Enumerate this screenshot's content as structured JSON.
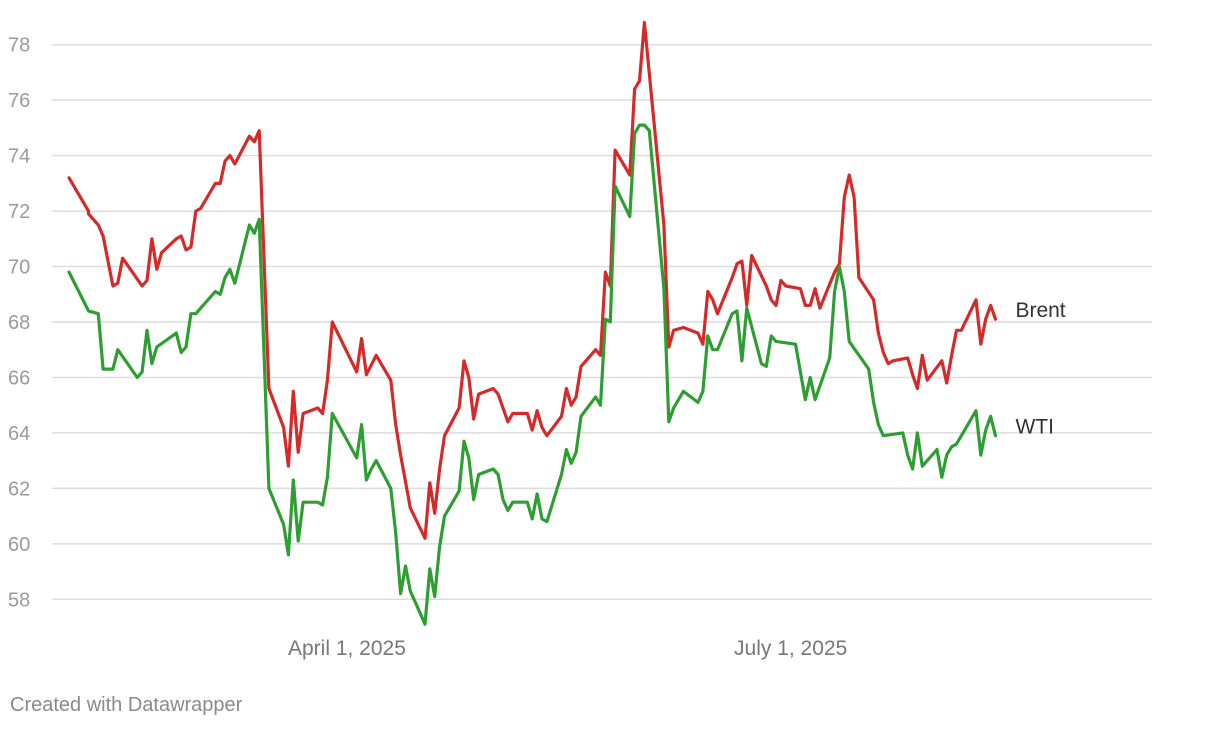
{
  "footer": {
    "credit": "Created with Datawrapper"
  },
  "colors": {
    "brent": "#d42a2a",
    "wti": "#2e9e32",
    "grid": "#dcdcdc",
    "tick_text": "#9a9a9a",
    "axis_label_text": "#777777",
    "series_label_text": "#333333"
  },
  "chart_data": {
    "type": "line",
    "title": "",
    "xlabel": "",
    "ylabel": "",
    "ylim": [
      57,
      79
    ],
    "xlim": [
      "2025-02-03",
      "2025-09-09"
    ],
    "yticks": [
      58,
      60,
      62,
      64,
      66,
      68,
      70,
      72,
      74,
      76,
      78
    ],
    "xticks": [
      {
        "date": "2025-04-01",
        "label": "April 1, 2025"
      },
      {
        "date": "2025-07-01",
        "label": "July 1, 2025"
      }
    ],
    "grid": true,
    "legend": "direct labels at line ends (right)",
    "series": [
      {
        "name": "Brent",
        "color": "#d42a2a",
        "points": [
          [
            "2025-02-03",
            73.2
          ],
          [
            "2025-02-07",
            72.0
          ],
          [
            "2025-02-07",
            71.9
          ],
          [
            "2025-02-08",
            71.7
          ],
          [
            "2025-02-09",
            71.5
          ],
          [
            "2025-02-10",
            71.1
          ],
          [
            "2025-02-12",
            69.3
          ],
          [
            "2025-02-13",
            69.4
          ],
          [
            "2025-02-14",
            70.3
          ],
          [
            "2025-02-18",
            69.3
          ],
          [
            "2025-02-19",
            69.5
          ],
          [
            "2025-02-20",
            71.0
          ],
          [
            "2025-02-21",
            69.9
          ],
          [
            "2025-02-22",
            70.5
          ],
          [
            "2025-02-25",
            71.0
          ],
          [
            "2025-02-26",
            71.1
          ],
          [
            "2025-02-27",
            70.6
          ],
          [
            "2025-02-28",
            70.7
          ],
          [
            "2025-03-01",
            72.0
          ],
          [
            "2025-03-02",
            72.1
          ],
          [
            "2025-03-05",
            73.0
          ],
          [
            "2025-03-06",
            73.0
          ],
          [
            "2025-03-07",
            73.8
          ],
          [
            "2025-03-08",
            74.0
          ],
          [
            "2025-03-09",
            73.7
          ],
          [
            "2025-03-12",
            74.7
          ],
          [
            "2025-03-13",
            74.5
          ],
          [
            "2025-03-14",
            74.9
          ],
          [
            "2025-03-16",
            65.6
          ],
          [
            "2025-03-19",
            64.2
          ],
          [
            "2025-03-20",
            62.8
          ],
          [
            "2025-03-21",
            65.5
          ],
          [
            "2025-03-22",
            63.3
          ],
          [
            "2025-03-23",
            64.7
          ],
          [
            "2025-03-26",
            64.9
          ],
          [
            "2025-03-27",
            64.7
          ],
          [
            "2025-03-28",
            65.9
          ],
          [
            "2025-03-29",
            68.0
          ],
          [
            "2025-04-03",
            66.2
          ],
          [
            "2025-04-04",
            67.4
          ],
          [
            "2025-04-05",
            66.1
          ],
          [
            "2025-04-07",
            66.8
          ],
          [
            "2025-04-10",
            65.9
          ],
          [
            "2025-04-11",
            64.3
          ],
          [
            "2025-04-12",
            63.2
          ],
          [
            "2025-04-14",
            61.3
          ],
          [
            "2025-04-17",
            60.2
          ],
          [
            "2025-04-18",
            62.2
          ],
          [
            "2025-04-19",
            61.1
          ],
          [
            "2025-04-20",
            62.7
          ],
          [
            "2025-04-21",
            63.9
          ],
          [
            "2025-04-24",
            64.9
          ],
          [
            "2025-04-25",
            66.6
          ],
          [
            "2025-04-26",
            66.0
          ],
          [
            "2025-04-27",
            64.5
          ],
          [
            "2025-04-28",
            65.4
          ],
          [
            "2025-05-01",
            65.6
          ],
          [
            "2025-05-02",
            65.4
          ],
          [
            "2025-05-03",
            64.9
          ],
          [
            "2025-05-04",
            64.4
          ],
          [
            "2025-05-05",
            64.7
          ],
          [
            "2025-05-08",
            64.7
          ],
          [
            "2025-05-09",
            64.1
          ],
          [
            "2025-05-10",
            64.8
          ],
          [
            "2025-05-11",
            64.2
          ],
          [
            "2025-05-12",
            63.9
          ],
          [
            "2025-05-15",
            64.6
          ],
          [
            "2025-05-16",
            65.6
          ],
          [
            "2025-05-17",
            65.0
          ],
          [
            "2025-05-18",
            65.3
          ],
          [
            "2025-05-19",
            66.4
          ],
          [
            "2025-05-22",
            67.0
          ],
          [
            "2025-05-23",
            66.8
          ],
          [
            "2025-05-24",
            69.8
          ],
          [
            "2025-05-25",
            69.3
          ],
          [
            "2025-05-26",
            74.2
          ],
          [
            "2025-05-29",
            73.3
          ],
          [
            "2025-05-30",
            76.4
          ],
          [
            "2025-05-31",
            76.7
          ],
          [
            "2025-06-01",
            78.8
          ],
          [
            "2025-06-05",
            71.5
          ],
          [
            "2025-06-06",
            67.1
          ],
          [
            "2025-06-07",
            67.7
          ],
          [
            "2025-06-09",
            67.8
          ],
          [
            "2025-06-12",
            67.6
          ],
          [
            "2025-06-13",
            67.2
          ],
          [
            "2025-06-14",
            69.1
          ],
          [
            "2025-06-15",
            68.8
          ],
          [
            "2025-06-16",
            68.3
          ],
          [
            "2025-06-19",
            69.6
          ],
          [
            "2025-06-20",
            70.1
          ],
          [
            "2025-06-21",
            70.2
          ],
          [
            "2025-06-22",
            68.6
          ],
          [
            "2025-06-23",
            70.4
          ],
          [
            "2025-06-26",
            69.3
          ],
          [
            "2025-06-27",
            68.8
          ],
          [
            "2025-06-28",
            68.6
          ],
          [
            "2025-06-29",
            69.5
          ],
          [
            "2025-06-30",
            69.3
          ],
          [
            "2025-07-03",
            69.2
          ],
          [
            "2025-07-04",
            68.6
          ],
          [
            "2025-07-05",
            68.6
          ],
          [
            "2025-07-06",
            69.2
          ],
          [
            "2025-07-07",
            68.5
          ],
          [
            "2025-07-10",
            69.8
          ],
          [
            "2025-07-11",
            70.1
          ],
          [
            "2025-07-12",
            72.5
          ],
          [
            "2025-07-13",
            73.3
          ],
          [
            "2025-07-14",
            72.5
          ],
          [
            "2025-07-15",
            69.6
          ],
          [
            "2025-07-18",
            68.8
          ],
          [
            "2025-07-19",
            67.6
          ],
          [
            "2025-07-20",
            66.9
          ],
          [
            "2025-07-21",
            66.5
          ],
          [
            "2025-07-22",
            66.6
          ],
          [
            "2025-07-25",
            66.7
          ],
          [
            "2025-07-26",
            66.1
          ],
          [
            "2025-07-27",
            65.6
          ],
          [
            "2025-07-28",
            66.8
          ],
          [
            "2025-07-29",
            65.9
          ],
          [
            "2025-08-01",
            66.6
          ],
          [
            "2025-08-02",
            65.8
          ],
          [
            "2025-08-03",
            66.8
          ],
          [
            "2025-08-04",
            67.7
          ],
          [
            "2025-08-05",
            67.7
          ],
          [
            "2025-08-08",
            68.8
          ],
          [
            "2025-08-09",
            67.2
          ],
          [
            "2025-08-10",
            68.1
          ],
          [
            "2025-08-11",
            68.6
          ],
          [
            "2025-08-12",
            68.1
          ]
        ]
      },
      {
        "name": "WTI",
        "color": "#2e9e32",
        "points": [
          [
            "2025-02-03",
            69.8
          ],
          [
            "2025-02-07",
            68.4
          ],
          [
            "2025-02-09",
            68.3
          ],
          [
            "2025-02-10",
            66.3
          ],
          [
            "2025-02-12",
            66.3
          ],
          [
            "2025-02-13",
            67.0
          ],
          [
            "2025-02-17",
            66.0
          ],
          [
            "2025-02-18",
            66.2
          ],
          [
            "2025-02-19",
            67.7
          ],
          [
            "2025-02-20",
            66.5
          ],
          [
            "2025-02-21",
            67.1
          ],
          [
            "2025-02-25",
            67.6
          ],
          [
            "2025-02-26",
            66.9
          ],
          [
            "2025-02-27",
            67.1
          ],
          [
            "2025-02-28",
            68.3
          ],
          [
            "2025-03-01",
            68.3
          ],
          [
            "2025-03-05",
            69.1
          ],
          [
            "2025-03-06",
            69.0
          ],
          [
            "2025-03-07",
            69.6
          ],
          [
            "2025-03-08",
            69.9
          ],
          [
            "2025-03-09",
            69.4
          ],
          [
            "2025-03-12",
            71.5
          ],
          [
            "2025-03-13",
            71.2
          ],
          [
            "2025-03-14",
            71.7
          ],
          [
            "2025-03-16",
            62.0
          ],
          [
            "2025-03-19",
            60.7
          ],
          [
            "2025-03-20",
            59.6
          ],
          [
            "2025-03-21",
            62.3
          ],
          [
            "2025-03-22",
            60.1
          ],
          [
            "2025-03-23",
            61.5
          ],
          [
            "2025-03-26",
            61.5
          ],
          [
            "2025-03-27",
            61.4
          ],
          [
            "2025-03-28",
            62.4
          ],
          [
            "2025-03-29",
            64.7
          ],
          [
            "2025-04-03",
            63.1
          ],
          [
            "2025-04-04",
            64.3
          ],
          [
            "2025-04-05",
            62.3
          ],
          [
            "2025-04-06",
            62.7
          ],
          [
            "2025-04-07",
            63.0
          ],
          [
            "2025-04-10",
            62.0
          ],
          [
            "2025-04-11",
            60.4
          ],
          [
            "2025-04-12",
            58.2
          ],
          [
            "2025-04-13",
            59.2
          ],
          [
            "2025-04-14",
            58.3
          ],
          [
            "2025-04-17",
            57.1
          ],
          [
            "2025-04-18",
            59.1
          ],
          [
            "2025-04-19",
            58.1
          ],
          [
            "2025-04-20",
            59.9
          ],
          [
            "2025-04-21",
            61.0
          ],
          [
            "2025-04-24",
            61.9
          ],
          [
            "2025-04-25",
            63.7
          ],
          [
            "2025-04-26",
            63.1
          ],
          [
            "2025-04-27",
            61.6
          ],
          [
            "2025-04-28",
            62.5
          ],
          [
            "2025-05-01",
            62.7
          ],
          [
            "2025-05-02",
            62.5
          ],
          [
            "2025-05-03",
            61.6
          ],
          [
            "2025-05-04",
            61.2
          ],
          [
            "2025-05-05",
            61.5
          ],
          [
            "2025-05-08",
            61.5
          ],
          [
            "2025-05-09",
            60.9
          ],
          [
            "2025-05-10",
            61.8
          ],
          [
            "2025-05-11",
            60.9
          ],
          [
            "2025-05-12",
            60.8
          ],
          [
            "2025-05-15",
            62.5
          ],
          [
            "2025-05-16",
            63.4
          ],
          [
            "2025-05-17",
            62.9
          ],
          [
            "2025-05-18",
            63.3
          ],
          [
            "2025-05-19",
            64.6
          ],
          [
            "2025-05-22",
            65.3
          ],
          [
            "2025-05-23",
            65.0
          ],
          [
            "2025-05-24",
            68.1
          ],
          [
            "2025-05-25",
            68.0
          ],
          [
            "2025-05-26",
            72.9
          ],
          [
            "2025-05-29",
            71.8
          ],
          [
            "2025-05-30",
            74.8
          ],
          [
            "2025-05-31",
            75.1
          ],
          [
            "2025-06-01",
            75.1
          ],
          [
            "2025-06-02",
            74.9
          ],
          [
            "2025-06-05",
            69.2
          ],
          [
            "2025-06-06",
            64.4
          ],
          [
            "2025-06-07",
            64.9
          ],
          [
            "2025-06-09",
            65.5
          ],
          [
            "2025-06-12",
            65.1
          ],
          [
            "2025-06-13",
            65.5
          ],
          [
            "2025-06-14",
            67.5
          ],
          [
            "2025-06-15",
            67.0
          ],
          [
            "2025-06-16",
            67.0
          ],
          [
            "2025-06-19",
            68.3
          ],
          [
            "2025-06-20",
            68.4
          ],
          [
            "2025-06-21",
            66.6
          ],
          [
            "2025-06-22",
            68.5
          ],
          [
            "2025-06-25",
            66.5
          ],
          [
            "2025-06-26",
            66.4
          ],
          [
            "2025-06-27",
            67.5
          ],
          [
            "2025-06-28",
            67.3
          ],
          [
            "2025-07-02",
            67.2
          ],
          [
            "2025-07-04",
            65.2
          ],
          [
            "2025-07-05",
            66.0
          ],
          [
            "2025-07-06",
            65.2
          ],
          [
            "2025-07-09",
            66.7
          ],
          [
            "2025-07-10",
            69.1
          ],
          [
            "2025-07-11",
            70.0
          ],
          [
            "2025-07-12",
            69.1
          ],
          [
            "2025-07-13",
            67.3
          ],
          [
            "2025-07-17",
            66.3
          ],
          [
            "2025-07-18",
            65.1
          ],
          [
            "2025-07-19",
            64.3
          ],
          [
            "2025-07-20",
            63.9
          ],
          [
            "2025-07-24",
            64.0
          ],
          [
            "2025-07-25",
            63.2
          ],
          [
            "2025-07-26",
            62.7
          ],
          [
            "2025-07-27",
            64.0
          ],
          [
            "2025-07-28",
            62.8
          ],
          [
            "2025-07-31",
            63.4
          ],
          [
            "2025-08-01",
            62.4
          ],
          [
            "2025-08-02",
            63.2
          ],
          [
            "2025-08-03",
            63.5
          ],
          [
            "2025-08-04",
            63.6
          ],
          [
            "2025-08-08",
            64.8
          ],
          [
            "2025-08-09",
            63.2
          ],
          [
            "2025-08-10",
            64.1
          ],
          [
            "2025-08-11",
            64.6
          ],
          [
            "2025-08-12",
            63.9
          ]
        ]
      }
    ]
  }
}
